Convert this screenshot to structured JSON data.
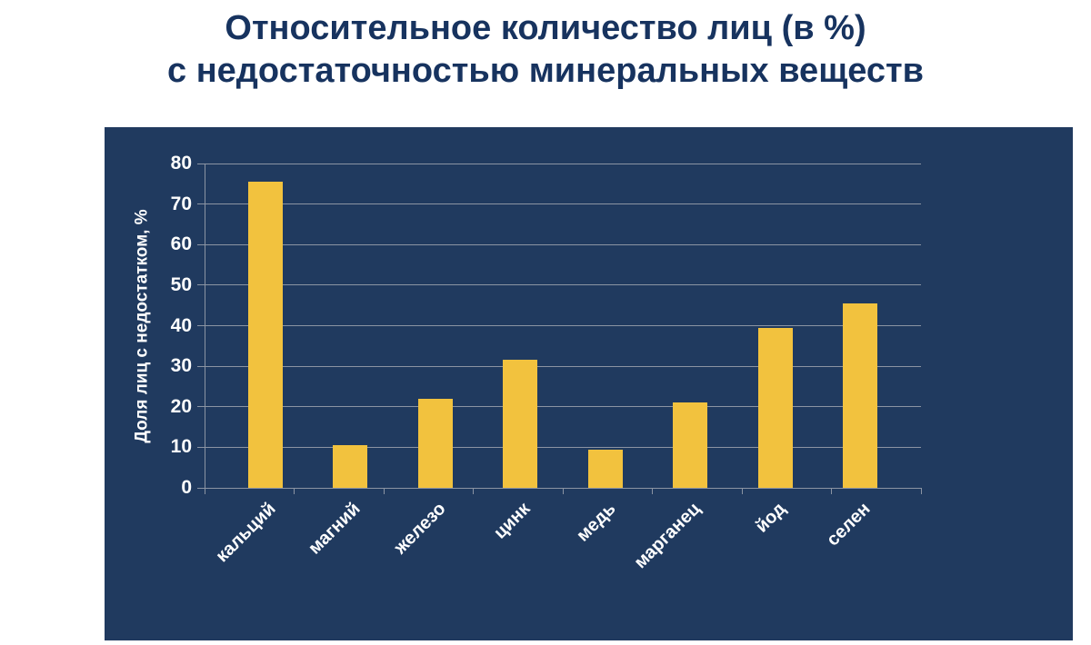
{
  "page": {
    "title_line1": "Относительное количество лиц (в %)",
    "title_line2": "с недостаточностью минеральных веществ"
  },
  "chart_data": {
    "type": "bar",
    "title": "Относительное количество лиц (в %) с недостаточностью минеральных веществ",
    "categories": [
      "кальций",
      "магний",
      "железо",
      "цинк",
      "медь",
      "марганец",
      "йод",
      "селен"
    ],
    "values": [
      75.5,
      10.5,
      22,
      31.5,
      9.5,
      21,
      39.5,
      45.5
    ],
    "xlabel": "",
    "ylabel": "Доля лиц с недостатком, %",
    "ylim": [
      0,
      80
    ],
    "ytick_step": 10,
    "grid": true,
    "legend": false,
    "colors": {
      "bar": "#f2c23e",
      "panel_bg": "#203a5f",
      "grid": "#8b94a3",
      "tick_label": "#ffffff",
      "title": "#17335f",
      "page_bg": "#ffffff"
    }
  }
}
